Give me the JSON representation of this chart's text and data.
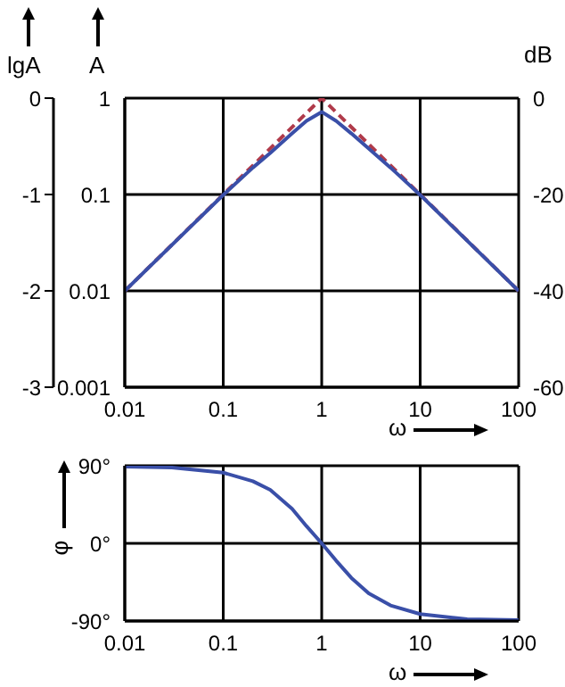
{
  "chart_data": [
    {
      "type": "line",
      "xlabel": "ω",
      "ylabel": "A",
      "y2label": "dB",
      "y3label": "lgA",
      "log": "xy",
      "grid": true,
      "xlim": [
        0.01,
        100
      ],
      "xticks": [
        0.01,
        0.1,
        1,
        10,
        100
      ],
      "ylim": [
        0.001,
        1
      ],
      "yticks": [
        0.001,
        0.01,
        0.1,
        1
      ],
      "y2lim": [
        -60,
        0
      ],
      "y2ticks": [
        -60,
        -40,
        -20,
        0
      ],
      "y3lim": [
        -3,
        0
      ],
      "y3ticks": [
        -3,
        -2,
        -1,
        0
      ],
      "series": [
        {
          "color": "#b03a4a",
          "line_style": "dashed",
          "x": [
            0.01,
            1,
            100
          ],
          "values": [
            0.01,
            1,
            0.01
          ]
        },
        {
          "color": "#3a4fa8",
          "line_style": "solid",
          "x": [
            0.01,
            0.1,
            0.2,
            0.3,
            0.5,
            0.7,
            1,
            1.4,
            2,
            3,
            5,
            10,
            100
          ],
          "values": [
            0.01,
            0.099,
            0.19,
            0.27,
            0.43,
            0.58,
            0.72,
            0.58,
            0.43,
            0.3,
            0.19,
            0.099,
            0.01
          ]
        }
      ]
    },
    {
      "type": "line",
      "xlabel": "ω",
      "ylabel": "φ",
      "log": "x",
      "grid": true,
      "xlim": [
        0.01,
        100
      ],
      "xticks": [
        0.01,
        0.1,
        1,
        10,
        100
      ],
      "ylim": [
        -90,
        90
      ],
      "yticks": [
        {
          "value": -90,
          "label": "-90°"
        },
        {
          "value": 0,
          "label": "0°"
        },
        {
          "value": 90,
          "label": "90°"
        }
      ],
      "series": [
        {
          "color": "#3a4fa8",
          "line_style": "solid",
          "x": [
            0.01,
            0.03,
            0.1,
            0.2,
            0.3,
            0.5,
            0.7,
            1,
            1.4,
            2,
            3,
            5,
            10,
            30,
            100
          ],
          "values": [
            89,
            88,
            82,
            72,
            62,
            40,
            20,
            0,
            -20,
            -40,
            -58,
            -72,
            -82,
            -88,
            -89
          ]
        }
      ]
    }
  ]
}
